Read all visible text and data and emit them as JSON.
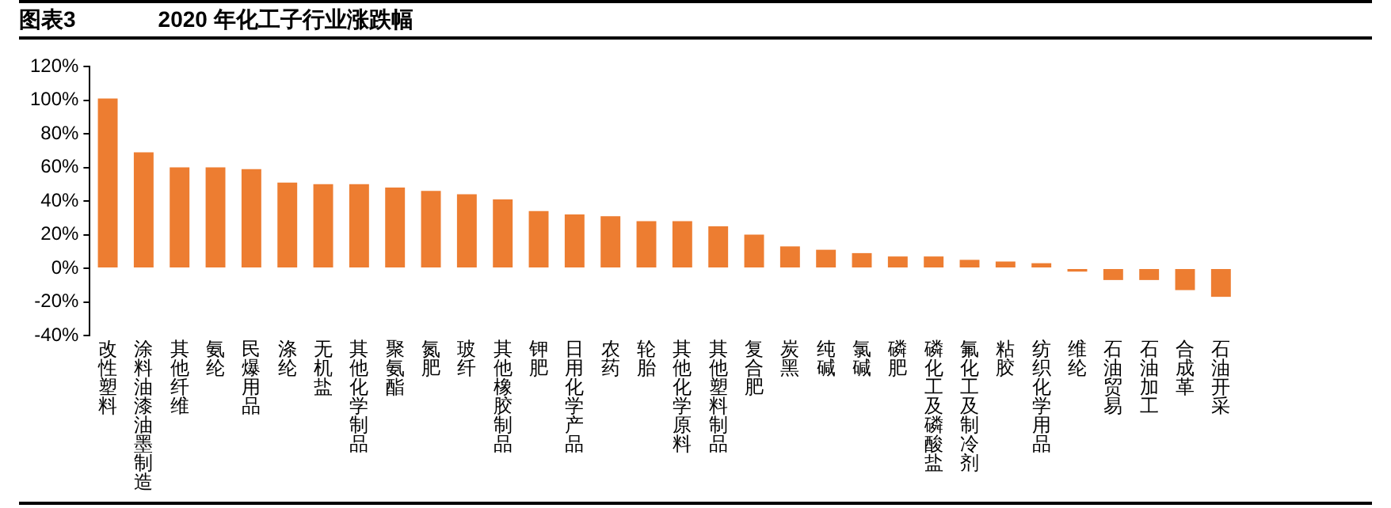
{
  "chart_data": {
    "type": "bar",
    "title": "图表3",
    "subtitle": "2020 年化工子行业涨跌幅",
    "categories": [
      "改性塑料",
      "涂料油漆油墨制造",
      "其他纤维",
      "氨纶",
      "民爆用品",
      "涤纶",
      "无机盐",
      "其他化学制品",
      "聚氨酯",
      "氮肥",
      "玻纤",
      "其他橡胶制品",
      "钾肥",
      "日用化学产品",
      "农药",
      "轮胎",
      "其他化学原料",
      "其他塑料制品",
      "复合肥",
      "炭黑",
      "纯碱",
      "氯碱",
      "磷肥",
      "磷化工及磷酸盐",
      "氟化工及制冷剂",
      "粘胶",
      "纺织化学用品",
      "维纶",
      "石油贸易",
      "石油加工",
      "合成革",
      "石油开采"
    ],
    "values": [
      101,
      69,
      60,
      60,
      59,
      51,
      50,
      50,
      48,
      46,
      44,
      41,
      34,
      32,
      31,
      28,
      28,
      25,
      20,
      13,
      11,
      9,
      7,
      7,
      5,
      4,
      3,
      -2,
      -7,
      -7,
      -13,
      -17
    ],
    "color": "#ed7d31",
    "ylim": [
      -40,
      120
    ],
    "yticks": [
      {
        "value": -40,
        "label": "-40%"
      },
      {
        "value": -20,
        "label": "-20%"
      },
      {
        "value": 0,
        "label": "0%"
      },
      {
        "value": 20,
        "label": "20%"
      },
      {
        "value": 40,
        "label": "40%"
      },
      {
        "value": 60,
        "label": "60%"
      },
      {
        "value": 80,
        "label": "80%"
      },
      {
        "value": 100,
        "label": "100%"
      },
      {
        "value": 120,
        "label": "120%"
      }
    ],
    "grid": false,
    "legend": false
  }
}
